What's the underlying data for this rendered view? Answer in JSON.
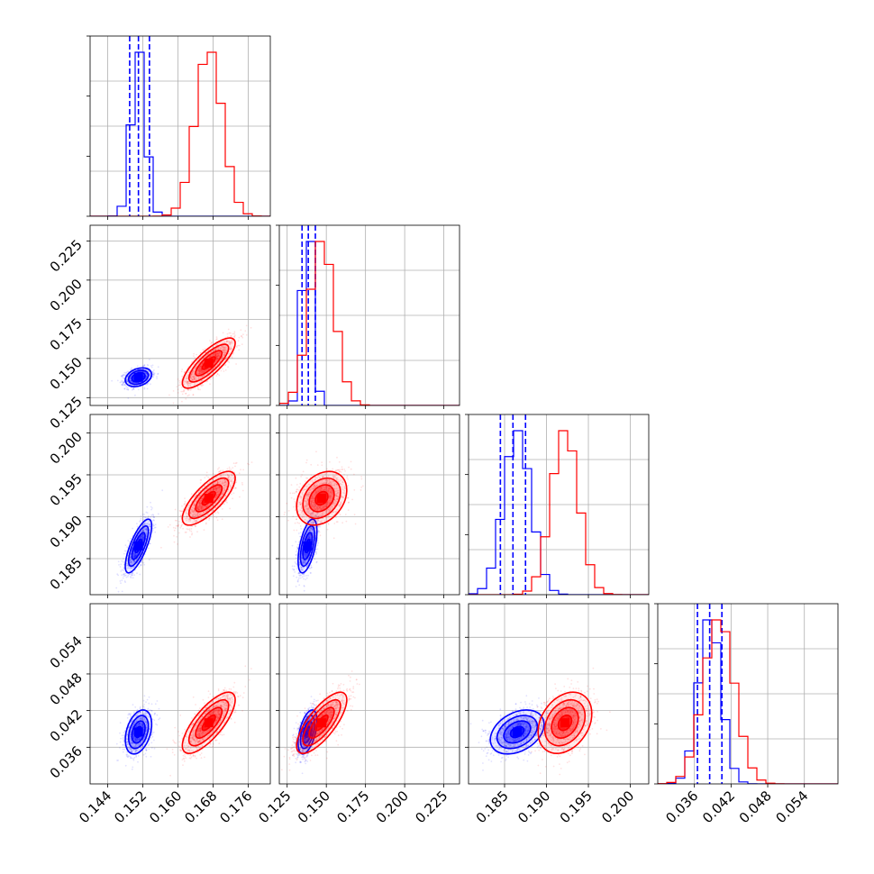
{
  "chart_data": {
    "type": "corner",
    "grid": true,
    "colors": {
      "blue": "#0000ff",
      "red": "#ff0000"
    },
    "parameters": [
      {
        "range": [
          0.14,
          0.181
        ],
        "ticks": [
          0.144,
          0.152,
          0.16,
          0.168,
          0.176
        ],
        "tick_labels": [
          "0.144",
          "0.152",
          "0.160",
          "0.168",
          "0.176"
        ]
      },
      {
        "range": [
          0.12,
          0.235
        ],
        "ticks": [
          0.125,
          0.15,
          0.175,
          0.2,
          0.225
        ],
        "tick_labels": [
          "0.125",
          "0.150",
          "0.175",
          "0.200",
          "0.225"
        ]
      },
      {
        "range": [
          0.1807,
          0.2022
        ],
        "ticks": [
          0.185,
          0.19,
          0.195,
          0.2
        ],
        "tick_labels": [
          "0.185",
          "0.190",
          "0.195",
          "0.200"
        ]
      },
      {
        "range": [
          0.03,
          0.0595
        ],
        "ticks": [
          0.036,
          0.042,
          0.048,
          0.054
        ],
        "tick_labels": [
          "0.036",
          "0.042",
          "0.048",
          "0.054"
        ]
      }
    ],
    "diag_hidden_ticks": [
      4
    ],
    "series": [
      {
        "color": "blue",
        "center": [
          0.151,
          0.138,
          0.1865,
          0.0385
        ],
        "sd": [
          0.0015,
          0.003,
          0.0016,
          0.0018
        ],
        "corr": [
          [
            1,
            0.3,
            0.75,
            0.35
          ],
          [
            0.3,
            1,
            0.55,
            0.5
          ],
          [
            0.75,
            0.55,
            1,
            0.35
          ],
          [
            0.35,
            0.5,
            0.35,
            1
          ]
        ],
        "quantiles": [
          [
            0.149,
            0.151,
            0.1535
          ],
          [
            0.1345,
            0.1385,
            0.143
          ],
          [
            0.1845,
            0.186,
            0.1875
          ],
          [
            0.0365,
            0.0385,
            0.0405
          ]
        ]
      },
      {
        "color": "red",
        "center": [
          0.167,
          0.147,
          0.1922,
          0.04
        ],
        "sd": [
          0.003,
          0.008,
          0.0016,
          0.0025
        ],
        "corr": [
          [
            1,
            0.8,
            0.75,
            0.75
          ],
          [
            0.8,
            1,
            0.3,
            0.75
          ],
          [
            0.75,
            0.3,
            1,
            0.3
          ],
          [
            0.75,
            0.75,
            0.3,
            1
          ]
        ],
        "quantiles": []
      }
    ]
  }
}
